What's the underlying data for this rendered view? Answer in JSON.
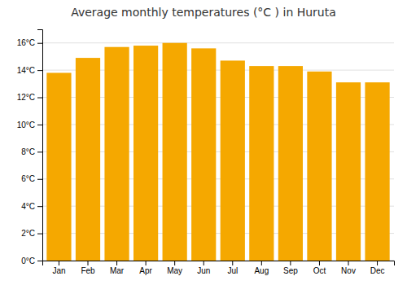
{
  "chart_data": {
    "type": "bar",
    "title": "Average monthly temperatures (°C ) in Huruta",
    "categories": [
      "Jan",
      "Feb",
      "Mar",
      "Apr",
      "May",
      "Jun",
      "Jul",
      "Aug",
      "Sep",
      "Oct",
      "Nov",
      "Dec"
    ],
    "values": [
      13.8,
      14.9,
      15.7,
      15.8,
      16.0,
      15.6,
      14.7,
      14.3,
      14.3,
      13.9,
      13.1,
      13.1
    ],
    "color": "#F5A800",
    "ylim": [
      0,
      17
    ],
    "yticks": [
      {
        "value": 0,
        "label": "0°C"
      },
      {
        "value": 2,
        "label": "2°C"
      },
      {
        "value": 4,
        "label": "4°C"
      },
      {
        "value": 6,
        "label": "6°C"
      },
      {
        "value": 8,
        "label": "8°C"
      },
      {
        "value": 10,
        "label": "10°C"
      },
      {
        "value": 12,
        "label": "12°C"
      },
      {
        "value": 14,
        "label": "14°C"
      },
      {
        "value": 16,
        "label": "16°C"
      }
    ],
    "grid": true
  }
}
